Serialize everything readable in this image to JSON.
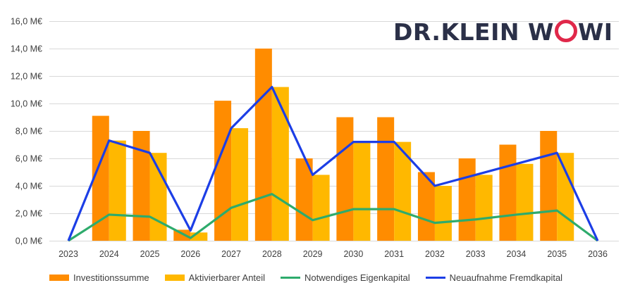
{
  "logo": {
    "before": "DR.KLEIN W",
    "ring": "O",
    "after": "WI",
    "ring_color": "#e0284a",
    "text_color": "#2b3048"
  },
  "chart_data": {
    "type": "bar+line",
    "categories": [
      "2023",
      "2024",
      "2025",
      "2026",
      "2027",
      "2028",
      "2029",
      "2030",
      "2031",
      "2032",
      "2033",
      "2034",
      "2035",
      "2036"
    ],
    "ylim": [
      0,
      16
    ],
    "yticks": [
      0,
      2,
      4,
      6,
      8,
      10,
      12,
      14,
      16
    ],
    "ytick_labels": [
      "0,0 M€",
      "2,0 M€",
      "4,0 M€",
      "6,0 M€",
      "8,0 M€",
      "10,0 M€",
      "12,0 M€",
      "14,0 M€",
      "16,0 M€"
    ],
    "grid": true,
    "legend_position": "bottom",
    "series": [
      {
        "name": "Investitionssumme",
        "kind": "bar",
        "color": "#ff8c00",
        "values": [
          0,
          9.1,
          8.0,
          0.8,
          10.2,
          14.0,
          6.0,
          9.0,
          9.0,
          5.0,
          6.0,
          7.0,
          8.0,
          0
        ]
      },
      {
        "name": "Aktivierbarer Anteil",
        "kind": "bar",
        "color": "#ffb800",
        "values": [
          0,
          7.3,
          6.4,
          0.6,
          8.2,
          11.2,
          4.8,
          7.2,
          7.2,
          4.0,
          4.8,
          5.6,
          6.4,
          0
        ]
      },
      {
        "name": "Notwendiges Eigenkapital",
        "kind": "line",
        "color": "#2eab6c",
        "values": [
          0,
          1.9,
          1.75,
          0.2,
          2.4,
          3.4,
          1.5,
          2.3,
          2.3,
          1.3,
          1.55,
          1.9,
          2.2,
          0
        ]
      },
      {
        "name": "Neuaufnahme Fremdkapital",
        "kind": "line",
        "color": "#1c3ee6",
        "values": [
          0,
          7.3,
          6.4,
          0.75,
          8.2,
          11.2,
          4.8,
          7.2,
          7.2,
          4.0,
          4.8,
          5.6,
          6.4,
          0
        ]
      }
    ]
  }
}
